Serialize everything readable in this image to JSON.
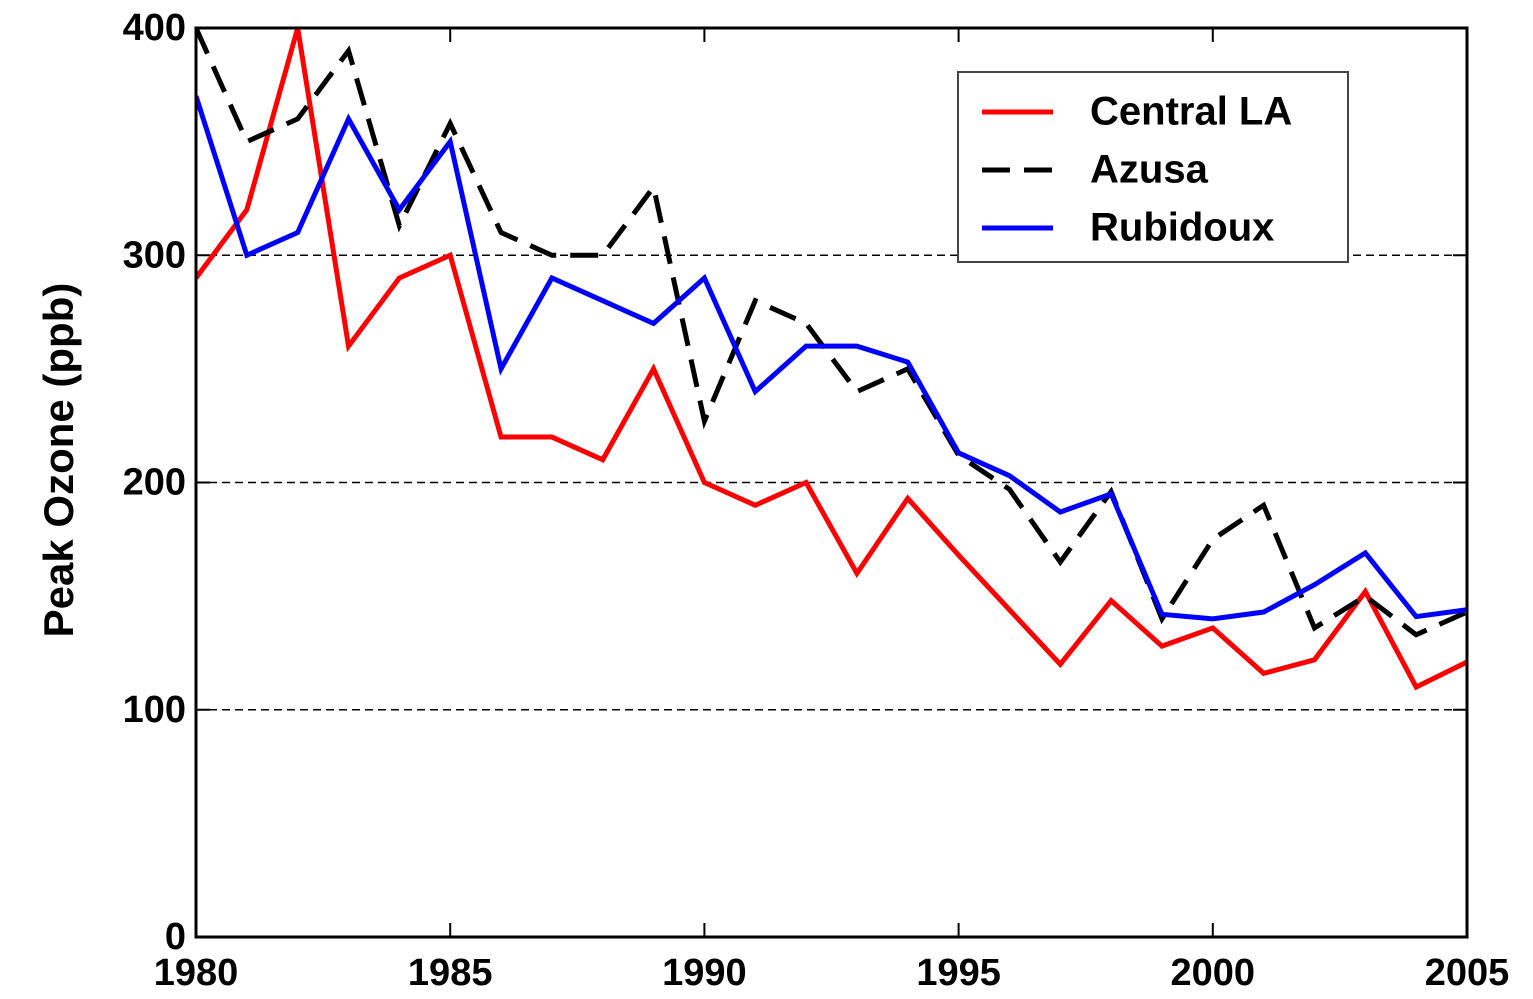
{
  "chart_data": {
    "type": "line",
    "ylabel": "Peak  Ozone  (ppb)",
    "x": [
      1980,
      1981,
      1982,
      1983,
      1984,
      1985,
      1986,
      1987,
      1988,
      1989,
      1990,
      1991,
      1992,
      1993,
      1994,
      1995,
      1996,
      1997,
      1998,
      1999,
      2000,
      2001,
      2002,
      2003,
      2004,
      2005
    ],
    "series": [
      {
        "name": "Central LA",
        "color": "#ff0000",
        "linestyle": "solid",
        "values": [
          290,
          320,
          400,
          260,
          290,
          300,
          220,
          220,
          210,
          250,
          200,
          190,
          200,
          160,
          193,
          168,
          144,
          120,
          148,
          128,
          136,
          116,
          122,
          152,
          110,
          121
        ]
      },
      {
        "name": "Azusa",
        "color": "#000000",
        "linestyle": "dashed",
        "values": [
          400,
          350,
          360,
          390,
          313,
          358,
          310,
          300,
          300,
          330,
          227,
          280,
          270,
          240,
          250,
          212,
          197,
          165,
          196,
          140,
          175,
          190,
          136,
          150,
          133,
          143
        ]
      },
      {
        "name": "Rubidoux",
        "color": "#0000ff",
        "linestyle": "solid",
        "values": [
          370,
          300,
          310,
          360,
          320,
          350,
          250,
          290,
          280,
          270,
          290,
          240,
          260,
          260,
          253,
          213,
          203,
          187,
          195,
          142,
          140,
          143,
          155,
          169,
          141,
          144
        ]
      }
    ],
    "xlim": [
      1980,
      2005
    ],
    "xticks": [
      1980,
      1985,
      1990,
      1995,
      2000,
      2005
    ],
    "ylim": [
      0,
      400
    ],
    "yticks": [
      0,
      100,
      200,
      300,
      400
    ],
    "grid": true,
    "legend": "upper-right"
  }
}
